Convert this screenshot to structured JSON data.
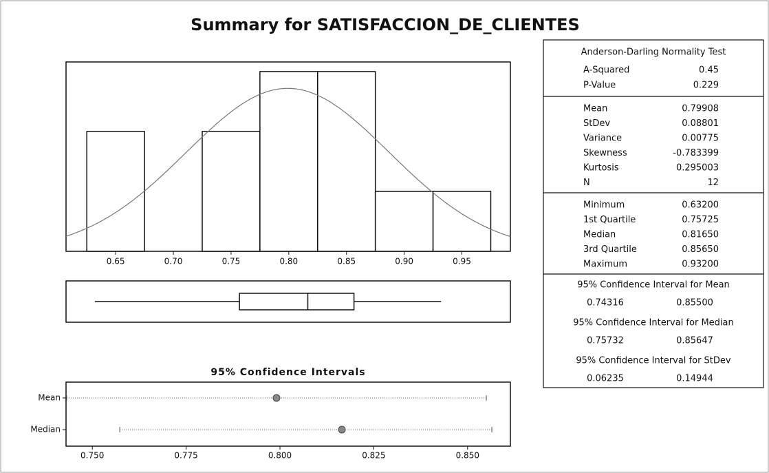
{
  "title": "Summary for SATISFACCION_DE_CLIENTES",
  "chart_data": [
    {
      "type": "histogram",
      "bins": [
        0.625,
        0.675,
        0.725,
        0.775,
        0.825,
        0.875,
        0.925,
        0.975
      ],
      "counts": [
        2,
        0,
        2,
        3,
        3,
        1,
        1
      ],
      "xlim": [
        0.607,
        0.992
      ],
      "xticks": [
        0.65,
        {
          "value": 0.7,
          "label": "0.70"
        },
        0.75,
        {
          "value": 0.8,
          "label": "0.80"
        },
        0.85,
        {
          "value": 0.9,
          "label": "0.90"
        },
        0.95
      ],
      "ylim": [
        0,
        3.16
      ],
      "fit": {
        "mean": 0.79908,
        "stdev": 0.08801
      },
      "color": "#ffffff",
      "curve_color": "#777777"
    },
    {
      "type": "boxplot",
      "min": 0.632,
      "q1": 0.75725,
      "median": 0.8165,
      "q3": 0.8565,
      "max": 0.932,
      "xlim": [
        0.607,
        0.992
      ]
    },
    {
      "type": "interval",
      "title": "95% Confidence Intervals",
      "categories": [
        "Mean",
        "Median"
      ],
      "values": [
        0.79908,
        0.8165
      ],
      "lower": [
        0.74316,
        0.75732
      ],
      "upper": [
        0.855,
        0.85647
      ],
      "xlim": [
        0.743,
        0.8614
      ],
      "xticks": [
        {
          "value": 0.75,
          "label": "0.750"
        },
        0.775,
        {
          "value": 0.8,
          "label": "0.800"
        },
        0.825,
        {
          "value": 0.85,
          "label": "0.850"
        }
      ]
    }
  ],
  "stats": {
    "sections": [
      {
        "title": "Anderson-Darling Normality Test",
        "rows": [
          [
            "A-Squared",
            "0.45"
          ],
          [
            "P-Value",
            "0.229"
          ]
        ]
      },
      {
        "rows": [
          [
            "Mean",
            "0.79908"
          ],
          [
            "StDev",
            "0.08801"
          ],
          [
            "Variance",
            "0.00775"
          ],
          [
            "Skewness",
            "-0.783399"
          ],
          [
            "Kurtosis",
            "0.295003"
          ],
          [
            "N",
            "12"
          ]
        ]
      },
      {
        "rows": [
          [
            "Minimum",
            "0.63200"
          ],
          [
            "1st Quartile",
            "0.75725"
          ],
          [
            "Median",
            "0.81650"
          ],
          [
            "3rd Quartile",
            "0.85650"
          ],
          [
            "Maximum",
            "0.93200"
          ]
        ]
      },
      {
        "intervals": [
          {
            "title": "95% Confidence Interval for Mean",
            "values": [
              "0.74316",
              "0.85500"
            ]
          },
          {
            "title": "95% Confidence Interval for Median",
            "values": [
              "0.75732",
              "0.85647"
            ]
          },
          {
            "title": "95% Confidence Interval for StDev",
            "values": [
              "0.06235",
              "0.14944"
            ]
          }
        ]
      }
    ]
  }
}
